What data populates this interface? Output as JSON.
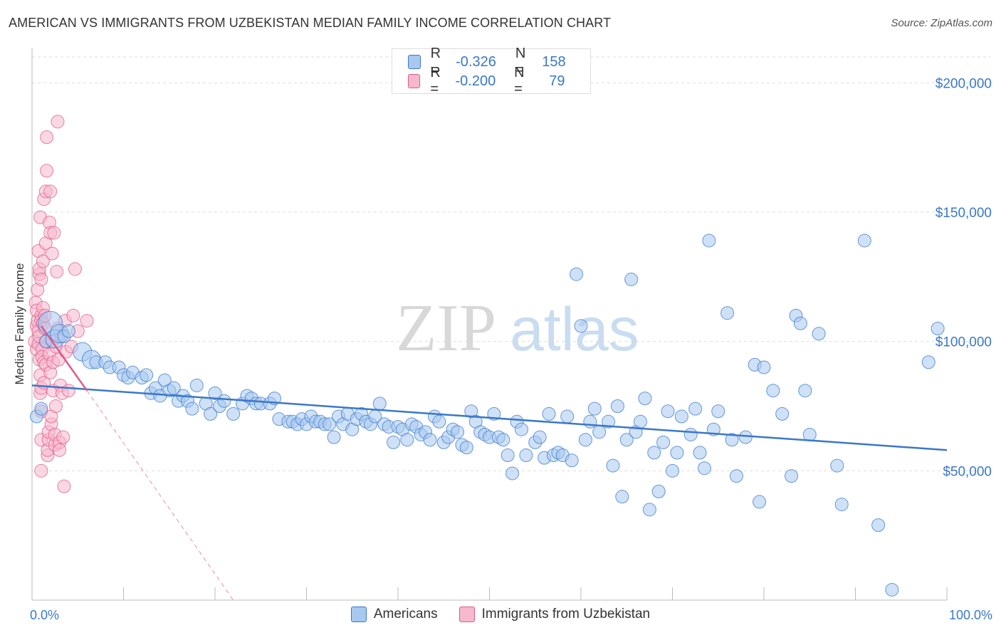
{
  "title": "AMERICAN VS IMMIGRANTS FROM UZBEKISTAN MEDIAN FAMILY INCOME CORRELATION CHART",
  "source": "Source: ZipAtlas.com",
  "watermark": {
    "zip": "ZIP",
    "atlas": "atlas"
  },
  "colors": {
    "blue": "#3a78c9",
    "blue_fill": "#a8c8f0",
    "pink": "#e05a8a",
    "pink_fill": "#f5b8cc",
    "grid": "#dddddd",
    "tick_text": "#3a78c9"
  },
  "legend": {
    "rows": [
      {
        "r_label": "R =",
        "r_value": "-0.326",
        "n_label": "N =",
        "n_value": "158"
      },
      {
        "r_label": "R =",
        "r_value": "-0.200",
        "n_label": "N =",
        "n_value": "79"
      }
    ]
  },
  "bottom_legend": {
    "americans": "Americans",
    "immigrants": "Immigrants from Uzbekistan"
  },
  "chart_data": {
    "type": "scatter",
    "xlabel": "",
    "ylabel": "Median Family Income",
    "xlim": [
      0,
      100
    ],
    "ylim": [
      0,
      210000
    ],
    "x_tick_labels": [
      "0.0%",
      "100.0%"
    ],
    "y_ticks": [
      50000,
      100000,
      150000,
      200000
    ],
    "y_tick_labels": [
      "$50,000",
      "$100,000",
      "$150,000",
      "$200,000"
    ],
    "grid": true,
    "legend_position": "top-center",
    "series": [
      {
        "name": "Americans",
        "trend": {
          "x": [
            0,
            100
          ],
          "y": [
            83000,
            58000
          ]
        },
        "points": [
          [
            0.5,
            71000,
            1
          ],
          [
            1,
            74000,
            1
          ],
          [
            1.5,
            100000,
            1
          ],
          [
            2,
            107000,
            3
          ],
          [
            2.5,
            101000,
            2
          ],
          [
            3,
            103000,
            2
          ],
          [
            3.5,
            102000,
            1
          ],
          [
            4,
            104000,
            1
          ],
          [
            5.5,
            96000,
            2
          ],
          [
            6.5,
            93000,
            2
          ],
          [
            7,
            92000,
            1
          ],
          [
            8,
            92000,
            1
          ],
          [
            8.5,
            90000,
            1
          ],
          [
            9.5,
            90000,
            1
          ],
          [
            10,
            87000,
            1
          ],
          [
            10.5,
            86000,
            1
          ],
          [
            11,
            88000,
            1
          ],
          [
            12,
            86000,
            1
          ],
          [
            12.5,
            87000,
            1
          ],
          [
            13,
            80000,
            1
          ],
          [
            13.5,
            82000,
            1
          ],
          [
            14,
            79000,
            1
          ],
          [
            14.5,
            85000,
            1
          ],
          [
            15,
            81000,
            1
          ],
          [
            15.5,
            82000,
            1
          ],
          [
            16,
            77000,
            1
          ],
          [
            16.5,
            79000,
            1
          ],
          [
            17,
            77000,
            1
          ],
          [
            17.5,
            74000,
            1
          ],
          [
            18,
            83000,
            1
          ],
          [
            19,
            76000,
            1
          ],
          [
            19.5,
            72000,
            1
          ],
          [
            20,
            80000,
            1
          ],
          [
            20.5,
            75000,
            1
          ],
          [
            21,
            77000,
            1
          ],
          [
            22,
            72000,
            1
          ],
          [
            23,
            76000,
            1
          ],
          [
            23.5,
            79000,
            1
          ],
          [
            24,
            78000,
            1
          ],
          [
            24.5,
            76000,
            1
          ],
          [
            25,
            76000,
            1
          ],
          [
            26,
            76000,
            1
          ],
          [
            26.5,
            78000,
            1
          ],
          [
            27,
            70000,
            1
          ],
          [
            28,
            69000,
            1
          ],
          [
            28.5,
            69000,
            1
          ],
          [
            29,
            68000,
            1
          ],
          [
            29.5,
            70000,
            1
          ],
          [
            30,
            68000,
            1
          ],
          [
            30.5,
            71000,
            1
          ],
          [
            31,
            69000,
            1
          ],
          [
            31.5,
            69000,
            1
          ],
          [
            32,
            68000,
            1
          ],
          [
            32.5,
            68000,
            1
          ],
          [
            33,
            63000,
            1
          ],
          [
            33.5,
            71000,
            1
          ],
          [
            34,
            68000,
            1
          ],
          [
            34.5,
            72000,
            1
          ],
          [
            35,
            66000,
            1
          ],
          [
            35.5,
            70000,
            1
          ],
          [
            36,
            72000,
            1
          ],
          [
            36.5,
            69000,
            1
          ],
          [
            37,
            68000,
            1
          ],
          [
            37.5,
            71000,
            1
          ],
          [
            38,
            76000,
            1
          ],
          [
            38.5,
            68000,
            1
          ],
          [
            39,
            67000,
            1
          ],
          [
            39.5,
            61000,
            1
          ],
          [
            40,
            67000,
            1
          ],
          [
            40.5,
            66000,
            1
          ],
          [
            41,
            62000,
            1
          ],
          [
            41.5,
            68000,
            1
          ],
          [
            42,
            67000,
            1
          ],
          [
            42.5,
            64000,
            1
          ],
          [
            43,
            65000,
            1
          ],
          [
            43.5,
            62000,
            1
          ],
          [
            44,
            71000,
            1
          ],
          [
            44.5,
            69000,
            1
          ],
          [
            45,
            61000,
            1
          ],
          [
            45.5,
            63000,
            1
          ],
          [
            46,
            66000,
            1
          ],
          [
            46.5,
            65000,
            1
          ],
          [
            47,
            60000,
            1
          ],
          [
            47.5,
            59000,
            1
          ],
          [
            48,
            73000,
            1
          ],
          [
            48.5,
            69000,
            1
          ],
          [
            49,
            65000,
            1
          ],
          [
            49.5,
            64000,
            1
          ],
          [
            50,
            63000,
            1
          ],
          [
            50.5,
            72000,
            1
          ],
          [
            51,
            63000,
            1
          ],
          [
            51.5,
            62000,
            1
          ],
          [
            52,
            56000,
            1
          ],
          [
            52.5,
            49000,
            1
          ],
          [
            53,
            69000,
            1
          ],
          [
            53.5,
            66000,
            1
          ],
          [
            54,
            56000,
            1
          ],
          [
            55,
            61000,
            1
          ],
          [
            55.5,
            63000,
            1
          ],
          [
            56,
            55000,
            1
          ],
          [
            56.5,
            72000,
            1
          ],
          [
            57,
            56000,
            1
          ],
          [
            57.5,
            57000,
            1
          ],
          [
            58,
            56000,
            1
          ],
          [
            58.5,
            71000,
            1
          ],
          [
            59,
            54000,
            1
          ],
          [
            59.5,
            126000,
            1
          ],
          [
            60,
            106000,
            1
          ],
          [
            60.5,
            62000,
            1
          ],
          [
            61,
            69000,
            1
          ],
          [
            61.5,
            74000,
            1
          ],
          [
            62,
            65000,
            1
          ],
          [
            63,
            69000,
            1
          ],
          [
            63.5,
            52000,
            1
          ],
          [
            64,
            75000,
            1
          ],
          [
            64.5,
            40000,
            1
          ],
          [
            65,
            62000,
            1
          ],
          [
            65.5,
            124000,
            1
          ],
          [
            66,
            65000,
            1
          ],
          [
            66.5,
            69000,
            1
          ],
          [
            67,
            78000,
            1
          ],
          [
            67.5,
            35000,
            1
          ],
          [
            68,
            57000,
            1
          ],
          [
            68.5,
            42000,
            1
          ],
          [
            69,
            61000,
            1
          ],
          [
            69.5,
            73000,
            1
          ],
          [
            70,
            50000,
            1
          ],
          [
            70.5,
            57000,
            1
          ],
          [
            71,
            71000,
            1
          ],
          [
            72,
            64000,
            1
          ],
          [
            72.5,
            74000,
            1
          ],
          [
            73,
            57000,
            1
          ],
          [
            73.5,
            51000,
            1
          ],
          [
            74,
            139000,
            1
          ],
          [
            74.5,
            66000,
            1
          ],
          [
            75,
            73000,
            1
          ],
          [
            76,
            111000,
            1
          ],
          [
            76.5,
            62000,
            1
          ],
          [
            77,
            48000,
            1
          ],
          [
            78,
            63000,
            1
          ],
          [
            79,
            91000,
            1
          ],
          [
            79.5,
            38000,
            1
          ],
          [
            80,
            90000,
            1
          ],
          [
            81,
            81000,
            1
          ],
          [
            82,
            72000,
            1
          ],
          [
            83,
            48000,
            1
          ],
          [
            83.5,
            110000,
            1
          ],
          [
            84,
            107000,
            1
          ],
          [
            84.5,
            81000,
            1
          ],
          [
            85,
            64000,
            1
          ],
          [
            86,
            103000,
            1
          ],
          [
            88,
            52000,
            1
          ],
          [
            88.5,
            37000,
            1
          ],
          [
            91,
            139000,
            1
          ],
          [
            92.5,
            29000,
            1
          ],
          [
            94,
            4000,
            1
          ],
          [
            98,
            92000,
            1
          ],
          [
            99,
            105000,
            1
          ]
        ]
      },
      {
        "name": "Immigrants from Uzbekistan",
        "trend": {
          "x": [
            1,
            6
          ],
          "y": [
            106000,
            81000
          ]
        },
        "trend_dashed": {
          "x": [
            6,
            22
          ],
          "y": [
            81000,
            0
          ]
        },
        "points": [
          [
            0.3,
            100000,
            1
          ],
          [
            0.4,
            115000,
            1
          ],
          [
            0.5,
            97000,
            1
          ],
          [
            0.5,
            112000,
            1
          ],
          [
            0.5,
            106000,
            1
          ],
          [
            0.6,
            120000,
            1
          ],
          [
            0.6,
            108000,
            1
          ],
          [
            0.7,
            135000,
            1
          ],
          [
            0.7,
            104000,
            1
          ],
          [
            0.7,
            99000,
            1
          ],
          [
            0.8,
            93000,
            1
          ],
          [
            0.8,
            126000,
            1
          ],
          [
            0.8,
            128000,
            1
          ],
          [
            0.8,
            102000,
            1
          ],
          [
            0.9,
            87000,
            1
          ],
          [
            0.9,
            80000,
            1
          ],
          [
            0.9,
            148000,
            1
          ],
          [
            1,
            110000,
            1
          ],
          [
            1,
            108000,
            1
          ],
          [
            1,
            124000,
            1
          ],
          [
            1,
            82000,
            1
          ],
          [
            1,
            73000,
            1
          ],
          [
            1,
            62000,
            1
          ],
          [
            1,
            50000,
            1
          ],
          [
            1.1,
            97000,
            1
          ],
          [
            1.1,
            94000,
            1
          ],
          [
            1.2,
            113000,
            1
          ],
          [
            1.2,
            107000,
            1
          ],
          [
            1.2,
            131000,
            1
          ],
          [
            1.3,
            155000,
            1
          ],
          [
            1.3,
            92000,
            1
          ],
          [
            1.3,
            84000,
            1
          ],
          [
            1.4,
            110000,
            1
          ],
          [
            1.4,
            105000,
            1
          ],
          [
            1.5,
            138000,
            1
          ],
          [
            1.5,
            158000,
            1
          ],
          [
            1.5,
            91000,
            1
          ],
          [
            1.6,
            166000,
            1
          ],
          [
            1.6,
            179000,
            1
          ],
          [
            1.6,
            100000,
            1
          ],
          [
            1.7,
            56000,
            1
          ],
          [
            1.7,
            58000,
            1
          ],
          [
            1.8,
            62000,
            1
          ],
          [
            1.8,
            65000,
            1
          ],
          [
            1.9,
            95000,
            1
          ],
          [
            1.9,
            146000,
            1
          ],
          [
            2,
            158000,
            1
          ],
          [
            2,
            142000,
            1
          ],
          [
            2,
            88000,
            1
          ],
          [
            2.1,
            68000,
            1
          ],
          [
            2.1,
            71000,
            1
          ],
          [
            2.2,
            100000,
            1
          ],
          [
            2.2,
            134000,
            1
          ],
          [
            2.3,
            92000,
            1
          ],
          [
            2.3,
            81000,
            1
          ],
          [
            2.4,
            142000,
            1
          ],
          [
            2.5,
            60000,
            1
          ],
          [
            2.5,
            64000,
            1
          ],
          [
            2.6,
            75000,
            1
          ],
          [
            2.6,
            98000,
            1
          ],
          [
            2.7,
            127000,
            1
          ],
          [
            2.8,
            185000,
            1
          ],
          [
            2.8,
            105000,
            1
          ],
          [
            2.9,
            93000,
            1
          ],
          [
            3,
            61000,
            1
          ],
          [
            3,
            58000,
            1
          ],
          [
            3.1,
            83000,
            1
          ],
          [
            3.2,
            102000,
            1
          ],
          [
            3.3,
            80000,
            1
          ],
          [
            3.4,
            63000,
            1
          ],
          [
            3.5,
            44000,
            1
          ],
          [
            3.6,
            108000,
            1
          ],
          [
            3.7,
            96000,
            1
          ],
          [
            4,
            81000,
            1
          ],
          [
            4.3,
            98000,
            1
          ],
          [
            4.5,
            110000,
            1
          ],
          [
            4.7,
            128000,
            1
          ],
          [
            5,
            104000,
            1
          ],
          [
            6,
            108000,
            1
          ]
        ]
      }
    ]
  }
}
